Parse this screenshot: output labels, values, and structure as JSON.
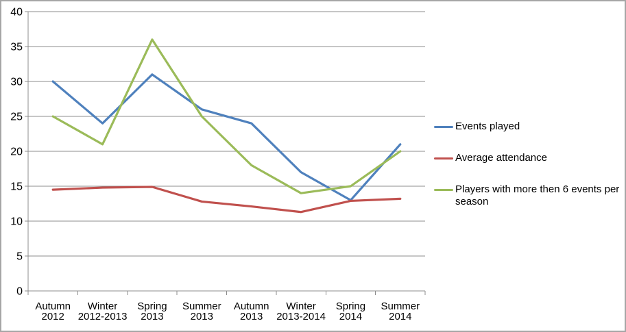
{
  "chart_data": {
    "type": "line",
    "categories": [
      "Autumn 2012",
      "Winter 2012-2013",
      "Spring 2013",
      "Summer 2013",
      "Autumn 2013",
      "Winter 2013-2014",
      "Spring 2014",
      "Summer 2014"
    ],
    "category_label_lines": [
      [
        "Autumn",
        "2012"
      ],
      [
        "Winter",
        "2012-2013"
      ],
      [
        "Spring",
        "2013"
      ],
      [
        "Summer",
        "2013"
      ],
      [
        "Autumn",
        "2013"
      ],
      [
        "Winter",
        "2013-2014"
      ],
      [
        "Spring",
        "2014"
      ],
      [
        "Summer",
        "2014"
      ]
    ],
    "series": [
      {
        "name": "Events played",
        "color": "#4F81BD",
        "values": [
          30,
          24,
          31,
          26,
          24,
          17,
          13,
          21
        ]
      },
      {
        "name": "Average attendance",
        "color": "#C0504D",
        "values": [
          14.5,
          14.8,
          14.9,
          12.8,
          12.1,
          11.3,
          12.9,
          13.2
        ]
      },
      {
        "name": "Players with more then 6 events per season",
        "color": "#9BBB59",
        "values": [
          25,
          21,
          36,
          25,
          18,
          14,
          15,
          20
        ]
      }
    ],
    "yticks": [
      0,
      5,
      10,
      15,
      20,
      25,
      30,
      35,
      40
    ],
    "ylim": [
      0,
      40
    ],
    "grid": true,
    "legend_position": "right",
    "xlabel": "",
    "ylabel": ""
  },
  "style": {
    "grid_color": "#8C8C8C",
    "axis_color": "#8C8C8C",
    "text_color": "#000000",
    "frame_border_color": "#A6A6A6",
    "background": "#FFFFFF"
  }
}
